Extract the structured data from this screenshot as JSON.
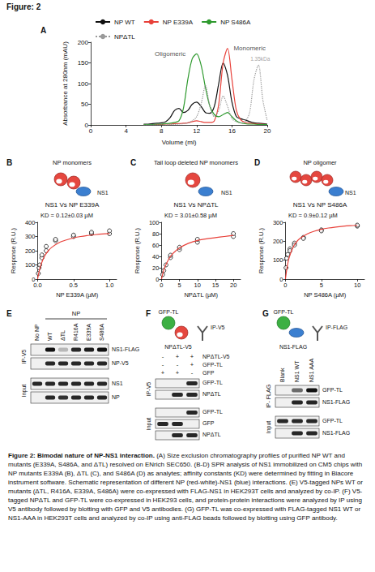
{
  "figure_label": "Figure: 2",
  "chart_data": [
    {
      "panel": "A",
      "type": "line",
      "legend": "top",
      "grid": false,
      "xlabel": "Volume (ml)",
      "ylabel": "Absorbance at 280nm (mAU)",
      "xlim": [
        0,
        20
      ],
      "xticks": [
        0,
        4,
        8,
        12,
        16,
        20
      ],
      "ylim": [
        0,
        200
      ],
      "yticks": [
        0,
        50,
        100,
        150,
        200
      ],
      "x": [
        6,
        6.5,
        7,
        7.5,
        8,
        8.5,
        9,
        9.5,
        10,
        10.5,
        11,
        11.5,
        12,
        12.5,
        13,
        13.5,
        14,
        14.5,
        15,
        15.5,
        16,
        16.5,
        17,
        17.5,
        18,
        18.5,
        19,
        19.5,
        20
      ],
      "series": [
        {
          "name": "NP WT",
          "color": "#111111",
          "line_style": "solid",
          "values": [
            2,
            2,
            3,
            4,
            5,
            8,
            18,
            35,
            40,
            30,
            35,
            50,
            55,
            45,
            30,
            28,
            45,
            100,
            150,
            120,
            55,
            20,
            15,
            12,
            8,
            5,
            4,
            3,
            2
          ]
        },
        {
          "name": "NP E339A",
          "color": "#e8413a",
          "line_style": "solid",
          "values": [
            1,
            1,
            1,
            1,
            1,
            2,
            2,
            3,
            3,
            4,
            5,
            8,
            10,
            8,
            6,
            6,
            10,
            50,
            150,
            185,
            110,
            35,
            12,
            6,
            4,
            3,
            2,
            2,
            1
          ]
        },
        {
          "name": "NP S486A",
          "color": "#2f9a2f",
          "line_style": "solid",
          "values": [
            1,
            1,
            1,
            2,
            2,
            3,
            4,
            6,
            10,
            40,
            110,
            160,
            172,
            145,
            90,
            45,
            25,
            20,
            25,
            30,
            20,
            10,
            5,
            3,
            2,
            2,
            1,
            1,
            1
          ]
        },
        {
          "name": "NPΔTL",
          "color": "#9a9a9a",
          "line_style": "dotted",
          "values": [
            0,
            0,
            0,
            0,
            0,
            0,
            1,
            1,
            2,
            3,
            5,
            10,
            20,
            50,
            95,
            45,
            20,
            35,
            70,
            45,
            15,
            8,
            5,
            8,
            30,
            110,
            145,
            60,
            10
          ]
        }
      ],
      "annotations": [
        {
          "text": "Oligomeric",
          "x": 9.0,
          "y": 172,
          "color": "#222222"
        },
        {
          "text": "Monomeric",
          "x": 18.0,
          "y": 185,
          "color": "#222222"
        },
        {
          "text": "1.35kDa",
          "x": 19.2,
          "y": 160,
          "color": "#8a8a8a"
        }
      ]
    },
    {
      "panel": "B",
      "type": "scatter",
      "grid": false,
      "title": "NP monomers",
      "schematic_label": "NS1",
      "subtitle": "NS1 Vs NP E339A",
      "annotation": "KD = 0.12±0.03 µM",
      "xlabel": "NP E339A (µM)",
      "ylabel": "Response (R.U.)",
      "xlim": [
        0,
        1.1
      ],
      "xticks": [
        {
          "value": 0,
          "label": "0.0"
        },
        {
          "value": 0.5,
          "label": "0.5"
        },
        {
          "value": 1,
          "label": "1.0"
        }
      ],
      "ylim": [
        0,
        400
      ],
      "yticks": [
        0,
        100,
        200,
        300,
        400
      ],
      "series": [
        {
          "type": "scatter",
          "marker": "open_circle",
          "color": "#111111",
          "x": [
            0.01,
            0.02,
            0.03,
            0.06,
            0.06,
            0.12,
            0.12,
            0.25,
            0.25,
            0.5,
            0.5,
            0.75,
            0.75,
            1.0,
            1.0
          ],
          "values": [
            40,
            80,
            100,
            150,
            170,
            200,
            230,
            270,
            280,
            300,
            310,
            320,
            330,
            320,
            340
          ]
        },
        {
          "type": "line",
          "color": "#e8413a",
          "x": [
            0,
            0.02,
            0.05,
            0.1,
            0.15,
            0.2,
            0.3,
            0.4,
            0.5,
            0.6,
            0.7,
            0.8,
            0.9,
            1.0
          ],
          "values": [
            0,
            51,
            106,
            164,
            200,
            225,
            257,
            276,
            290,
            300,
            307,
            313,
            318,
            321
          ]
        }
      ]
    },
    {
      "panel": "C",
      "type": "scatter",
      "grid": false,
      "title": "Tail loop deleted NP monomers",
      "schematic_label": "NS1",
      "subtitle": "NS1 Vs NPΔTL",
      "annotation": "KD = 3.01±0.58 µM",
      "xlabel": "NPΔTL (µM)",
      "ylabel": "Response (R.U.)",
      "xlim": [
        0,
        22
      ],
      "xticks": [
        0,
        5,
        10,
        15,
        20
      ],
      "ylim": [
        0,
        100
      ],
      "yticks": [
        0,
        20,
        40,
        60,
        80,
        100
      ],
      "series": [
        {
          "type": "scatter",
          "marker": "open_circle",
          "color": "#111111",
          "x": [
            0.31,
            0.63,
            1.25,
            2.5,
            2.5,
            5,
            5,
            10,
            10,
            20,
            20
          ],
          "values": [
            8,
            15,
            25,
            38,
            42,
            52,
            56,
            65,
            70,
            75,
            80
          ]
        },
        {
          "type": "line",
          "color": "#e8413a",
          "x": [
            0,
            0.5,
            1,
            2,
            3,
            4,
            5,
            7.5,
            10,
            12.5,
            15,
            17.5,
            20
          ],
          "values": [
            0,
            13,
            22,
            35,
            44,
            50,
            55,
            63,
            68,
            71,
            73,
            75,
            77
          ]
        }
      ]
    },
    {
      "panel": "D",
      "type": "scatter",
      "grid": false,
      "title": "NP oligomer",
      "schematic_label": "NS1",
      "subtitle": "NS1 Vs NP S486A",
      "annotation": "KD = 0.9±0.12 µM",
      "xlabel": "NP S486A (µM)",
      "ylabel": "Response (R.U.)",
      "xlim": [
        0,
        11
      ],
      "xticks": [
        0,
        5,
        10
      ],
      "ylim": [
        0,
        300
      ],
      "yticks": [
        0,
        100,
        200,
        300
      ],
      "series": [
        {
          "type": "scatter",
          "marker": "open_circle",
          "color": "#111111",
          "x": [
            0.08,
            0.16,
            0.31,
            0.63,
            0.63,
            1.25,
            1.25,
            2.5,
            2.5,
            5,
            5,
            10,
            10
          ],
          "values": [
            60,
            110,
            130,
            160,
            150,
            190,
            180,
            220,
            215,
            260,
            255,
            280,
            285
          ]
        },
        {
          "type": "line",
          "color": "#e8413a",
          "x": [
            0,
            0.25,
            0.5,
            1,
            1.5,
            2,
            3,
            4,
            5,
            6,
            7,
            8,
            9,
            10
          ],
          "values": [
            0,
            67,
            111,
            163,
            194,
            214,
            238,
            253,
            263,
            270,
            275,
            279,
            282,
            284
          ]
        }
      ]
    }
  ],
  "blots": [
    {
      "panel": "E",
      "lanes": [
        "No NP",
        "WT",
        "ΔTL",
        "R416A",
        "E339A",
        "S486A"
      ],
      "lane_group": {
        "label": "NP",
        "first": 1,
        "last": 5
      },
      "sections": [
        {
          "label": "IP-V5",
          "rows": [
            {
              "label": "NS1-FLAG",
              "bands": [
                0,
                1,
                0.25,
                0.9,
                0.95,
                1
              ]
            },
            {
              "label": "NP-V5",
              "bands": [
                0,
                0.9,
                0.9,
                0.9,
                0.9,
                0.9
              ]
            }
          ]
        },
        {
          "label": "Input",
          "rows": [
            {
              "label": "NS1",
              "bands": [
                0.9,
                0.9,
                0.9,
                0.9,
                0.9,
                0.9
              ]
            },
            {
              "label": "NP",
              "bands": [
                0,
                0.9,
                0.85,
                0.9,
                0.9,
                0.9
              ]
            }
          ]
        }
      ]
    },
    {
      "panel": "F",
      "schematic": {
        "top": "GFP-TL",
        "bottom": "NPΔTL-V5",
        "antibody": "IP-V5"
      },
      "conditions": [
        {
          "label": "NPΔTL-V5",
          "signs": [
            "-",
            "+",
            "+"
          ]
        },
        {
          "label": "GFP-TL",
          "signs": [
            "-",
            "-",
            "+"
          ]
        },
        {
          "label": "GFP",
          "signs": [
            "+",
            "+",
            "-"
          ]
        }
      ],
      "sections": [
        {
          "label": "IP-V5",
          "rows": [
            {
              "label": "GFP-TL",
              "bands": [
                0,
                0,
                0.9
              ]
            },
            {
              "label": "NPΔTL",
              "bands": [
                0,
                0.9,
                0.9
              ]
            }
          ]
        },
        {
          "label": "Input",
          "rows": [
            {
              "label": "GFP-TL",
              "bands": [
                0,
                0,
                0.9
              ]
            },
            {
              "label": "GFP",
              "bands": [
                0.9,
                0.9,
                0
              ]
            },
            {
              "label": "NPΔTL",
              "bands": [
                0,
                0.9,
                0.9
              ]
            }
          ]
        }
      ]
    },
    {
      "panel": "G",
      "schematic": {
        "top": "GFP-TL",
        "bottom": "NS1-FLAG",
        "antibody": "IP-FLAG"
      },
      "lanes": [
        "Blank",
        "NS1 WT",
        "NS1 AAA"
      ],
      "sections": [
        {
          "label": "IP- FLAG",
          "rows": [
            {
              "label": "GFP-TL",
              "bands": [
                0,
                0.6,
                1
              ]
            },
            {
              "label": "NS1-FLAG",
              "bands": [
                0,
                0.9,
                0.9
              ]
            }
          ]
        },
        {
          "label": "Input",
          "rows": [
            {
              "label": "GFP-TL",
              "bands": [
                0.9,
                0.9,
                0.9
              ]
            },
            {
              "label": "NS1-FLAG",
              "bands": [
                0,
                0.9,
                0.9
              ]
            }
          ]
        }
      ]
    }
  ],
  "caption": {
    "title": "Figure 2: Bimodal nature of NP-NS1 interaction.",
    "text": "(A) Size exclusion chromatography profiles of purified NP WT and mutants (E339A, S486A, and ΔTL) resolved on ENrich SEC650. (B-D) SPR analysis of NS1 immobilized on CM5 chips with NP mutants E339A (B), ΔTL (C), and S486A (D) as analytes; affinity constants (KD) were determined by fitting in Biacore instrument software. Schematic representation of different NP (red-white)-NS1 (blue) interactions. (E) V5-tagged NPs WT or mutants (ΔTL, R416A, E339A, S486A) were co-expressed with FLAG-NS1 in HEK293T cells and analyzed by co-IP. (F) V5-tagged NPΔTL and GFP-TL were co-expressed in HEK293 cells, and protein-protein interactions were analyzed by IP using V5 antibody followed by blotting with GFP and V5 antibodies. (G) GFP-TL was co-expressed with FLAG-tagged NS1 WT or NS1-AAA in HEK293T cells and analyzed by co-IP using anti-FLAG beads followed by blotting using GFP antibody."
  }
}
